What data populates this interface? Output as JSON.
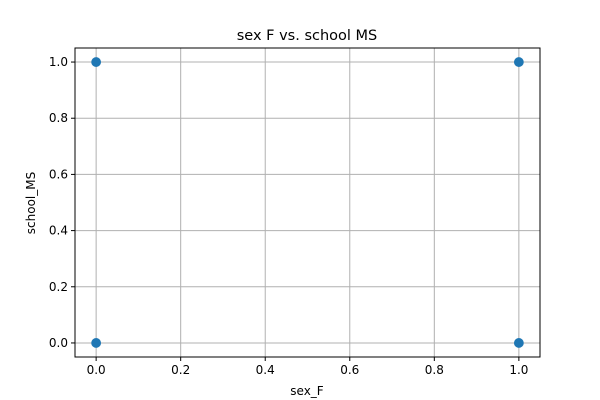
{
  "chart_data": {
    "type": "scatter",
    "title": "sex F vs. school MS",
    "xlabel": "sex_F",
    "ylabel": "school_MS",
    "xlim": [
      -0.05,
      1.05
    ],
    "ylim": [
      -0.05,
      1.05
    ],
    "xticks": [
      0.0,
      0.2,
      0.4,
      0.6,
      0.8,
      1.0
    ],
    "yticks": [
      0.0,
      0.2,
      0.4,
      0.6,
      0.8,
      1.0
    ],
    "xtick_labels": [
      "0.0",
      "0.2",
      "0.4",
      "0.6",
      "0.8",
      "1.0"
    ],
    "ytick_labels": [
      "0.0",
      "0.2",
      "0.4",
      "0.6",
      "0.8",
      "1.0"
    ],
    "grid": true,
    "points": [
      {
        "x": 0,
        "y": 0
      },
      {
        "x": 0,
        "y": 1
      },
      {
        "x": 1,
        "y": 0
      },
      {
        "x": 1,
        "y": 1
      }
    ],
    "marker_color": "#1f77b4"
  }
}
